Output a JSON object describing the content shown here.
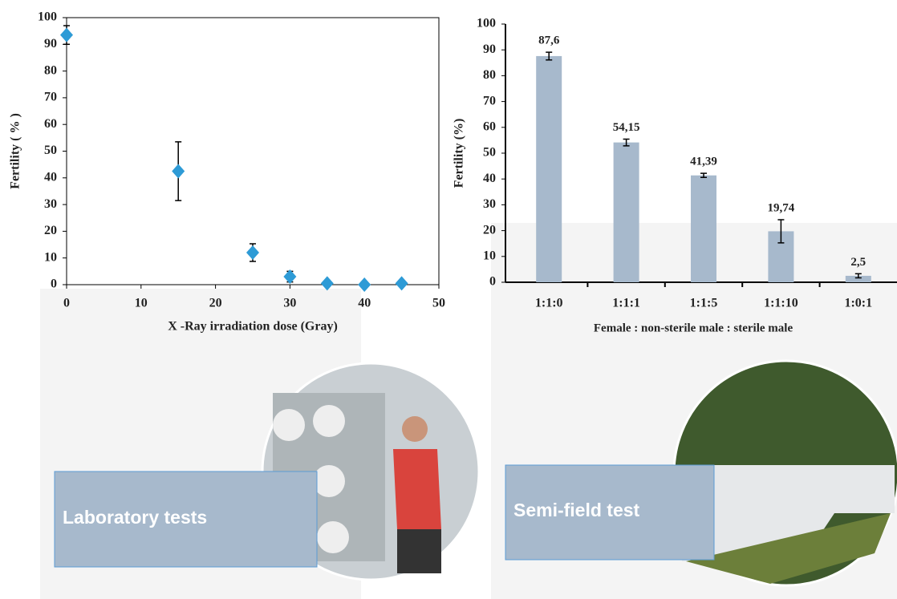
{
  "chart_data": [
    {
      "type": "scatter",
      "xlabel": "X -Ray irradiation dose (Gray)",
      "ylabel": "Fertility ( % )",
      "x": [
        0,
        15,
        25,
        30,
        35,
        40,
        45
      ],
      "values": [
        93.5,
        42.5,
        12,
        3,
        0.5,
        0,
        0.5
      ],
      "errors": [
        3.5,
        11,
        3.3,
        2,
        0.3,
        0,
        0.3
      ],
      "color": "#2e9bd6",
      "xlim": [
        0,
        50
      ],
      "xticks": [
        0,
        10,
        20,
        30,
        40,
        50
      ],
      "ylim": [
        0,
        100
      ],
      "yticks": [
        0,
        10,
        20,
        30,
        40,
        50,
        60,
        70,
        80,
        90,
        100
      ]
    },
    {
      "type": "bar",
      "xlabel": "Female : non-sterile male : sterile male",
      "ylabel": "Fertility (%)",
      "categories": [
        "1:1:0",
        "1:1:1",
        "1:1:5",
        "1:1:10",
        "1:0:1"
      ],
      "values": [
        87.6,
        54.15,
        41.39,
        19.74,
        2.5
      ],
      "value_labels": [
        "87,6",
        "54,15",
        "41,39",
        "19,74",
        "2,5"
      ],
      "errors": [
        1.5,
        1.3,
        0.8,
        4.5,
        0.8
      ],
      "color": "#a7b9cc",
      "ylim": [
        0,
        100
      ],
      "yticks": [
        0,
        10,
        20,
        30,
        40,
        50,
        60,
        70,
        80,
        90,
        100
      ]
    }
  ],
  "panels": [
    "Laboratory tests",
    "Semi-field test"
  ]
}
